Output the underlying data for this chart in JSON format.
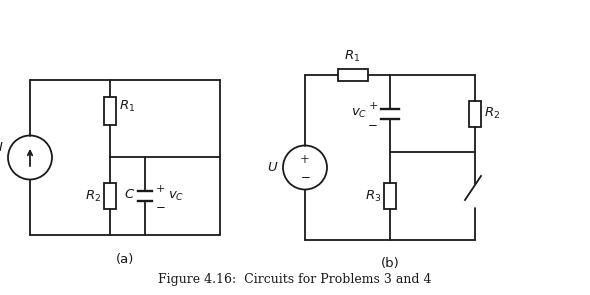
{
  "title": "Figure 4.16:  Circuits for Problems 3 and 4",
  "label_a": "(a)",
  "label_b": "(b)",
  "bg_color": "#ffffff",
  "line_color": "#1a1a1a",
  "font_size_labels": 9.5,
  "font_size_caption": 9,
  "lw": 1.3
}
